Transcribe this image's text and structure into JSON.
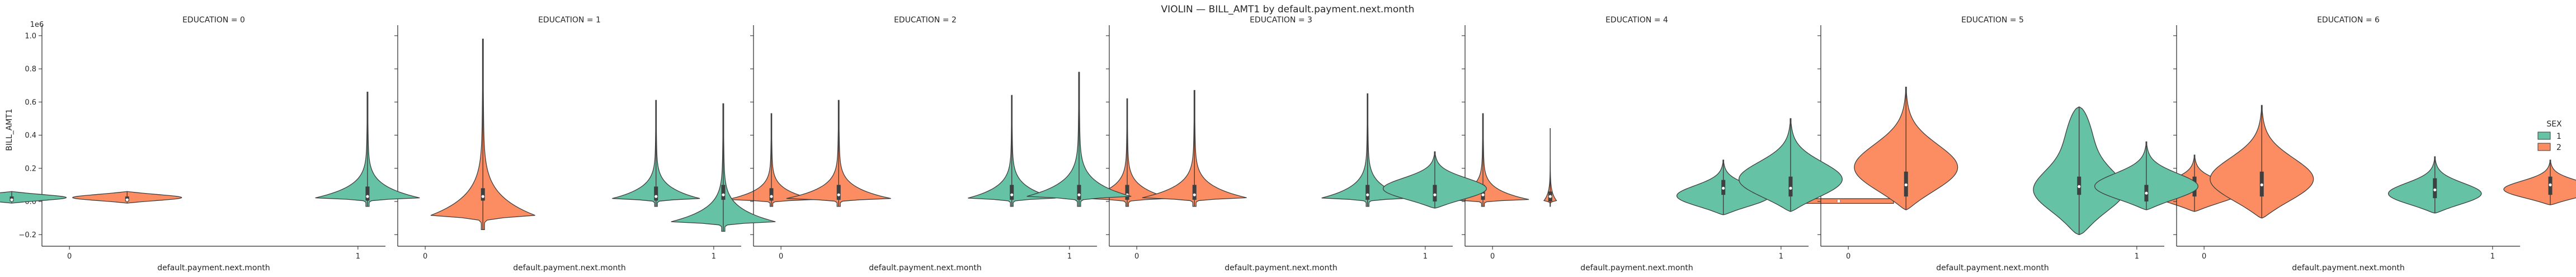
{
  "chart_data": {
    "type": "violin",
    "title": "VIOLIN — BILL_AMT1 by default.payment.next.month",
    "xlabel": "default.payment.next.month",
    "ylabel": "BILL_AMT1",
    "y_offset_label": "1e6",
    "ylim": [
      -0.27,
      1.05
    ],
    "yticks": [
      "−0.2",
      "0.0",
      "0.2",
      "0.4",
      "0.6",
      "0.8",
      "1.0"
    ],
    "ytick_values": [
      -0.2,
      0.0,
      0.2,
      0.4,
      0.6,
      0.8,
      1.0
    ],
    "categories": [
      "0",
      "1"
    ],
    "legend": {
      "title": "SEX",
      "placement": "right",
      "entries": [
        "1",
        "2"
      ]
    },
    "colors": {
      "1": "#66c2a5",
      "2": "#fc8d62"
    },
    "panels": [
      {
        "title": "EDUCATION = 0",
        "violins": [
          {
            "category": "0",
            "sex": "1",
            "min": -0.01,
            "max": 0.06,
            "q1": 0.0,
            "median": 0.01,
            "q3": 0.03,
            "width": 0.5,
            "shape": "bulge"
          },
          {
            "category": "0",
            "sex": "2",
            "min": -0.01,
            "max": 0.06,
            "q1": 0.0,
            "median": 0.01,
            "q3": 0.03,
            "width": 0.5,
            "shape": "bulge"
          }
        ]
      },
      {
        "title": "EDUCATION = 1",
        "violins": [
          {
            "category": "0",
            "sex": "1",
            "min": -0.03,
            "max": 0.66,
            "q1": 0.005,
            "median": 0.03,
            "q3": 0.09,
            "width": 0.5,
            "shape": "spike"
          },
          {
            "category": "0",
            "sex": "2",
            "min": -0.17,
            "max": 0.98,
            "q1": 0.005,
            "median": 0.03,
            "q3": 0.08,
            "width": 0.5,
            "shape": "spike"
          },
          {
            "category": "1",
            "sex": "1",
            "min": -0.03,
            "max": 0.61,
            "q1": 0.005,
            "median": 0.03,
            "q3": 0.09,
            "width": 0.42,
            "shape": "spike"
          },
          {
            "category": "1",
            "sex": "2",
            "min": -0.03,
            "max": 0.53,
            "q1": 0.005,
            "median": 0.03,
            "q3": 0.08,
            "width": 0.42,
            "shape": "spike"
          }
        ]
      },
      {
        "title": "EDUCATION = 2",
        "violins": [
          {
            "category": "0",
            "sex": "1",
            "min": -0.18,
            "max": 0.59,
            "q1": 0.01,
            "median": 0.04,
            "q3": 0.1,
            "width": 0.5,
            "shape": "spike"
          },
          {
            "category": "0",
            "sex": "2",
            "min": -0.03,
            "max": 0.61,
            "q1": 0.01,
            "median": 0.04,
            "q3": 0.1,
            "width": 0.5,
            "shape": "spike"
          },
          {
            "category": "1",
            "sex": "1",
            "min": -0.03,
            "max": 0.64,
            "q1": 0.01,
            "median": 0.04,
            "q3": 0.1,
            "width": 0.42,
            "shape": "spike"
          },
          {
            "category": "1",
            "sex": "2",
            "min": -0.03,
            "max": 0.62,
            "q1": 0.01,
            "median": 0.04,
            "q3": 0.1,
            "width": 0.42,
            "shape": "spike"
          }
        ]
      },
      {
        "title": "EDUCATION = 3",
        "violins": [
          {
            "category": "0",
            "sex": "1",
            "min": -0.03,
            "max": 0.78,
            "q1": 0.01,
            "median": 0.04,
            "q3": 0.1,
            "width": 0.5,
            "shape": "spike"
          },
          {
            "category": "0",
            "sex": "2",
            "min": -0.03,
            "max": 0.67,
            "q1": 0.01,
            "median": 0.04,
            "q3": 0.1,
            "width": 0.5,
            "shape": "spike"
          },
          {
            "category": "1",
            "sex": "1",
            "min": -0.03,
            "max": 0.65,
            "q1": 0.01,
            "median": 0.04,
            "q3": 0.1,
            "width": 0.44,
            "shape": "spike"
          },
          {
            "category": "1",
            "sex": "2",
            "min": -0.03,
            "max": 0.53,
            "q1": 0.01,
            "median": 0.04,
            "q3": 0.1,
            "width": 0.44,
            "shape": "spike"
          }
        ]
      },
      {
        "title": "EDUCATION = 4",
        "violins": [
          {
            "category": "0",
            "sex": "1",
            "min": -0.04,
            "max": 0.3,
            "q1": 0.0,
            "median": 0.04,
            "q3": 0.1,
            "width": 0.5,
            "shape": "blob"
          },
          {
            "category": "0",
            "sex": "2",
            "min": -0.03,
            "max": 0.44,
            "q1": 0.0,
            "median": 0.03,
            "q3": 0.06,
            "width": 0.06,
            "shape": "spike"
          },
          {
            "category": "1",
            "sex": "1",
            "min": -0.08,
            "max": 0.25,
            "q1": 0.04,
            "median": 0.08,
            "q3": 0.13,
            "width": 0.45,
            "shape": "blob"
          },
          {
            "category": "1",
            "sex": "2",
            "min": -0.005,
            "max": 0.01,
            "q1": 0.0,
            "median": 0.003,
            "q3": 0.006,
            "width": 0.5,
            "shape": "flat"
          }
        ]
      },
      {
        "title": "EDUCATION = 5",
        "violins": [
          {
            "category": "0",
            "sex": "1",
            "min": -0.06,
            "max": 0.5,
            "q1": 0.03,
            "median": 0.08,
            "q3": 0.15,
            "width": 0.5,
            "shape": "blob"
          },
          {
            "category": "0",
            "sex": "2",
            "min": -0.05,
            "max": 0.69,
            "q1": 0.03,
            "median": 0.1,
            "q3": 0.18,
            "width": 0.5,
            "shape": "blob"
          },
          {
            "category": "1",
            "sex": "1",
            "min": -0.2,
            "max": 0.57,
            "q1": 0.04,
            "median": 0.09,
            "q3": 0.15,
            "width": 0.45,
            "shape": "tall"
          },
          {
            "category": "1",
            "sex": "2",
            "min": -0.06,
            "max": 0.28,
            "q1": 0.03,
            "median": 0.09,
            "q3": 0.15,
            "width": 0.45,
            "shape": "blob"
          }
        ]
      },
      {
        "title": "EDUCATION = 6",
        "violins": [
          {
            "category": "0",
            "sex": "1",
            "min": -0.05,
            "max": 0.36,
            "q1": 0.0,
            "median": 0.05,
            "q3": 0.1,
            "width": 0.5,
            "shape": "blob"
          },
          {
            "category": "0",
            "sex": "2",
            "min": -0.1,
            "max": 0.58,
            "q1": 0.03,
            "median": 0.1,
            "q3": 0.18,
            "width": 0.5,
            "shape": "blob"
          },
          {
            "category": "1",
            "sex": "1",
            "min": -0.07,
            "max": 0.27,
            "q1": 0.02,
            "median": 0.07,
            "q3": 0.14,
            "width": 0.45,
            "shape": "blob"
          },
          {
            "category": "1",
            "sex": "2",
            "min": -0.02,
            "max": 0.25,
            "q1": 0.04,
            "median": 0.1,
            "q3": 0.15,
            "width": 0.45,
            "shape": "blob"
          }
        ]
      }
    ]
  }
}
